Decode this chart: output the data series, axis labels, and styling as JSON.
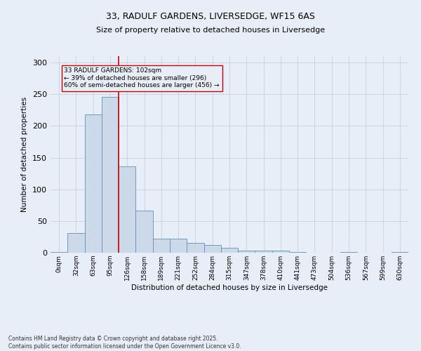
{
  "title_line1": "33, RADULF GARDENS, LIVERSEDGE, WF15 6AS",
  "title_line2": "Size of property relative to detached houses in Liversedge",
  "xlabel": "Distribution of detached houses by size in Liversedge",
  "ylabel": "Number of detached properties",
  "footnote": "Contains HM Land Registry data © Crown copyright and database right 2025.\nContains public sector information licensed under the Open Government Licence v3.0.",
  "bar_color": "#ccd9e8",
  "bar_edge_color": "#6090b8",
  "background_color": "#e8eef8",
  "grid_color": "#c0c8d8",
  "vline_color": "#cc0000",
  "vline_x": 3.5,
  "annotation_text": "33 RADULF GARDENS: 102sqm\n← 39% of detached houses are smaller (296)\n60% of semi-detached houses are larger (456) →",
  "annotation_box_color": "#cc0000",
  "bin_labels": [
    "0sqm",
    "32sqm",
    "63sqm",
    "95sqm",
    "126sqm",
    "158sqm",
    "189sqm",
    "221sqm",
    "252sqm",
    "284sqm",
    "315sqm",
    "347sqm",
    "378sqm",
    "410sqm",
    "441sqm",
    "473sqm",
    "504sqm",
    "536sqm",
    "567sqm",
    "599sqm",
    "630sqm"
  ],
  "bar_heights": [
    1,
    31,
    218,
    246,
    136,
    66,
    22,
    22,
    16,
    12,
    8,
    3,
    3,
    3,
    1,
    0,
    0,
    1,
    0,
    0,
    1
  ],
  "ylim": [
    0,
    310
  ],
  "yticks": [
    0,
    50,
    100,
    150,
    200,
    250,
    300
  ]
}
